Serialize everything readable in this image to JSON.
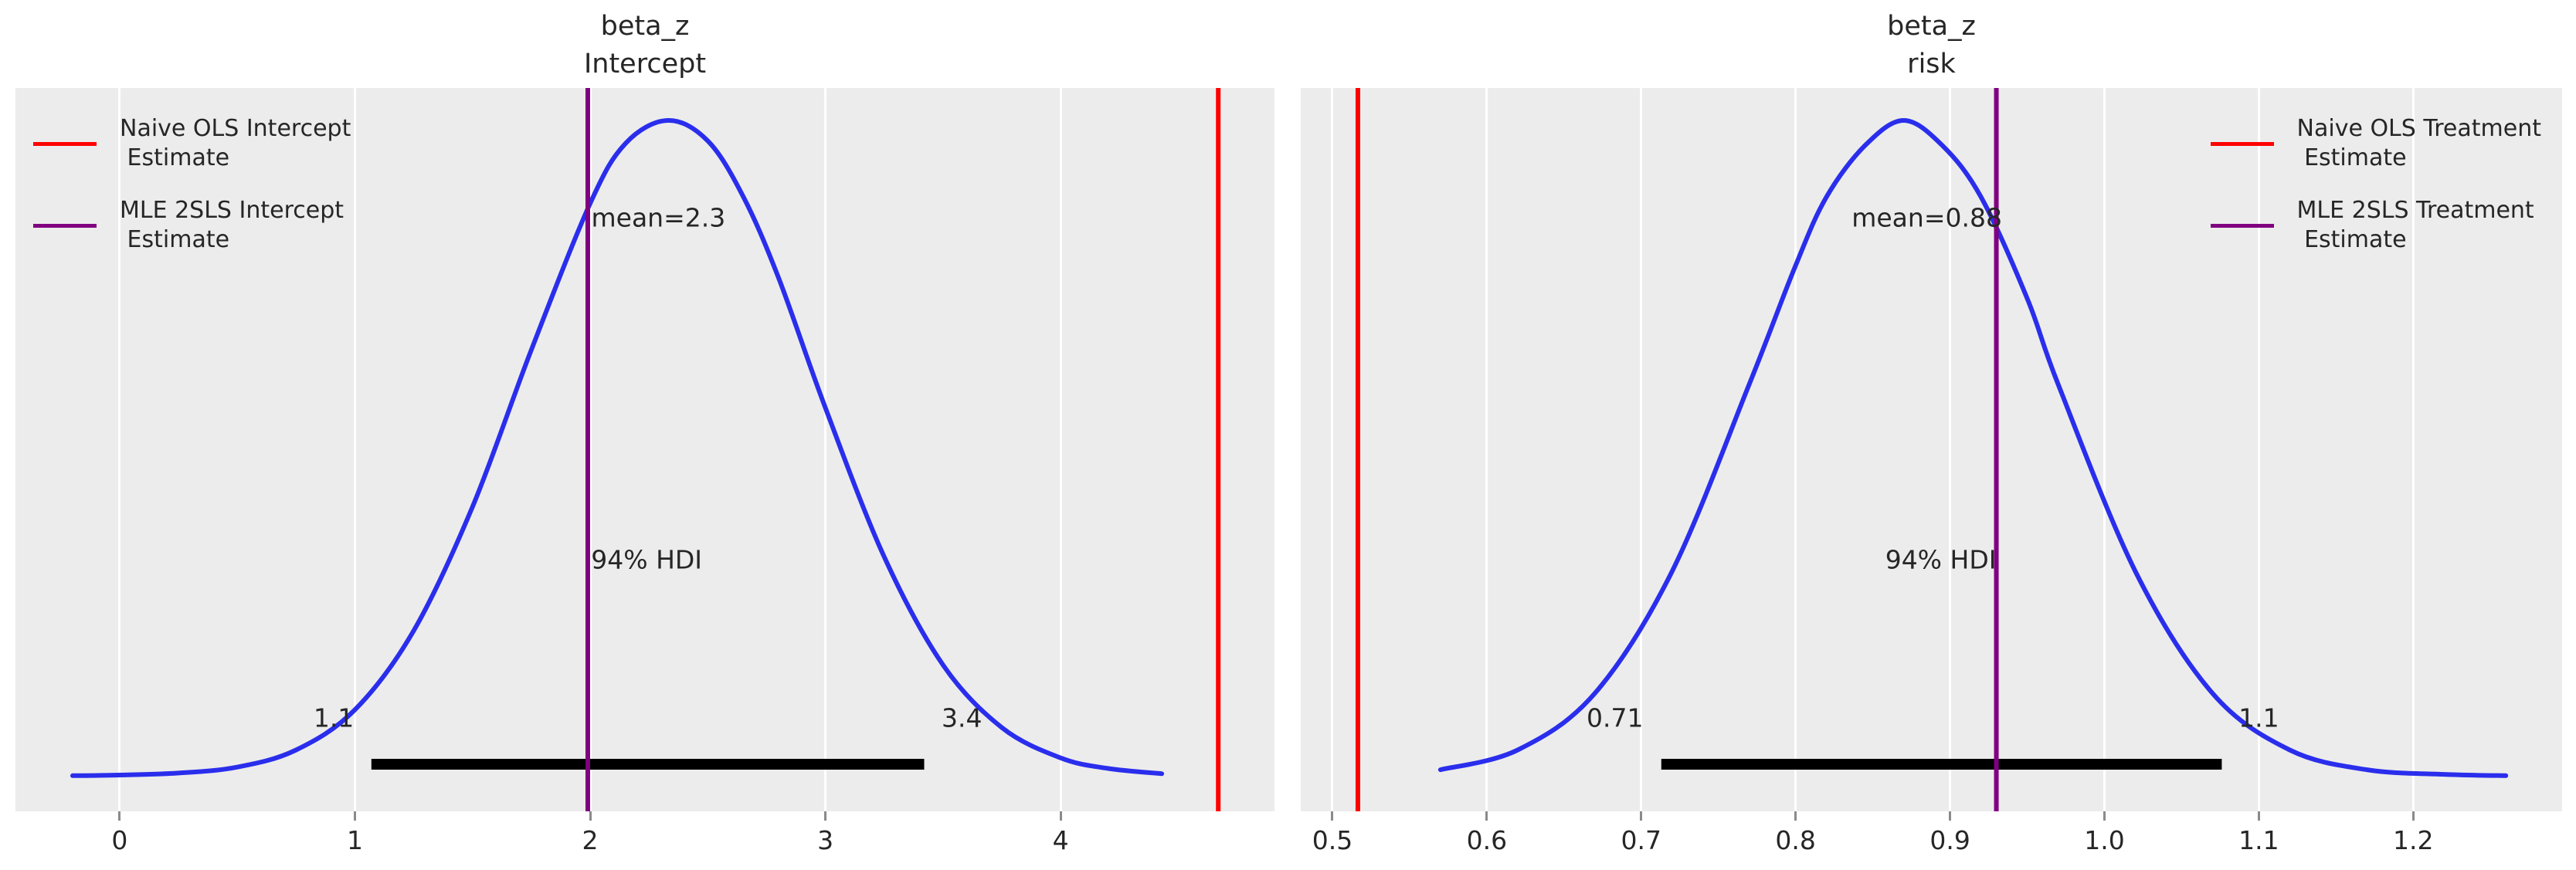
{
  "figure": {
    "background": "#ffffff",
    "axes_background": "#ececec",
    "grid_color": "#ffffff",
    "text_color": "#262626",
    "naive_ols_color": "#ff0000",
    "mle_2sls_color": "#800080",
    "kde_color": "#2a2eec",
    "hdi_bar_color": "#000000"
  },
  "chart_data": {
    "type": "kde-posterior",
    "panels": [
      {
        "id": "beta_z_intercept",
        "title_line1": "beta_z",
        "title_line2": "Intercept",
        "xlim": [
          -0.443,
          4.909
        ],
        "xticks": [
          0,
          1,
          2,
          3,
          4
        ],
        "xtick_labels": [
          "0",
          "1",
          "2",
          "3",
          "4"
        ],
        "mean_value": 2.3,
        "mean_label": "mean=2.3",
        "mean_label_x": 2.29,
        "hdi_label": "94% HDI",
        "hdi_label_x": 2.24,
        "hdi_interval": [
          1.07,
          3.42
        ],
        "hdi_lower_label": "1.1",
        "hdi_lower_label_x": 0.91,
        "hdi_upper_label": "3.4",
        "hdi_upper_label_x": 3.58,
        "vlines": [
          {
            "name": "naive-ols-estimate",
            "x": 4.67,
            "color": "#ff0000"
          },
          {
            "name": "mle-2sls-estimate",
            "x": 1.99,
            "color": "#800080"
          }
        ],
        "curve": {
          "x": [
            -0.2,
            0.0,
            0.25,
            0.5,
            0.75,
            1.0,
            1.25,
            1.5,
            1.75,
            2.0,
            2.15,
            2.33,
            2.5,
            2.65,
            2.8,
            3.0,
            3.25,
            3.5,
            3.75,
            4.0,
            4.2,
            4.43
          ],
          "density": [
            0.006,
            0.007,
            0.01,
            0.019,
            0.045,
            0.106,
            0.226,
            0.414,
            0.652,
            0.874,
            0.965,
            1.0,
            0.969,
            0.885,
            0.762,
            0.564,
            0.338,
            0.174,
            0.079,
            0.033,
            0.017,
            0.009
          ]
        },
        "legend_side": "left",
        "legend": [
          {
            "color": "#ff0000",
            "line1": "Naive OLS Intercept",
            "line2": " Estimate"
          },
          {
            "color": "#800080",
            "line1": "MLE 2SLS Intercept",
            "line2": " Estimate"
          }
        ]
      },
      {
        "id": "beta_z_risk",
        "title_line1": "beta_z",
        "title_line2": "risk",
        "xlim": [
          0.4795,
          1.2964
        ],
        "xticks": [
          0.5,
          0.6,
          0.7,
          0.8,
          0.9,
          1.0,
          1.1,
          1.2
        ],
        "xtick_labels": [
          "0.5",
          "0.6",
          "0.7",
          "0.8",
          "0.9",
          "1.0",
          "1.1",
          "1.2"
        ],
        "mean_value": 0.88,
        "mean_label": "mean=0.88",
        "mean_label_x": 0.885,
        "hdi_label": "94% HDI",
        "hdi_label_x": 0.894,
        "hdi_interval": [
          0.713,
          1.076
        ],
        "hdi_lower_label": "0.71",
        "hdi_lower_label_x": 0.683,
        "hdi_upper_label": "1.1",
        "hdi_upper_label_x": 1.1,
        "vlines": [
          {
            "name": "naive-ols-estimate",
            "x": 0.5165,
            "color": "#ff0000"
          },
          {
            "name": "mle-2sls-estimate",
            "x": 0.93,
            "color": "#800080"
          }
        ],
        "curve": {
          "x": [
            0.57,
            0.62,
            0.67,
            0.72,
            0.77,
            0.8,
            0.82,
            0.845,
            0.87,
            0.895,
            0.92,
            0.95,
            0.97,
            1.02,
            1.07,
            1.12,
            1.17,
            1.22,
            1.26
          ],
          "density": [
            0.015,
            0.045,
            0.131,
            0.316,
            0.6,
            0.78,
            0.884,
            0.962,
            1.0,
            0.962,
            0.884,
            0.73,
            0.6,
            0.316,
            0.131,
            0.045,
            0.015,
            0.008,
            0.006
          ]
        },
        "legend_side": "right",
        "legend": [
          {
            "color": "#ff0000",
            "line1": "Naive OLS Treatment",
            "line2": " Estimate"
          },
          {
            "color": "#800080",
            "line1": "MLE 2SLS Treatment",
            "line2": " Estimate"
          }
        ]
      }
    ]
  }
}
